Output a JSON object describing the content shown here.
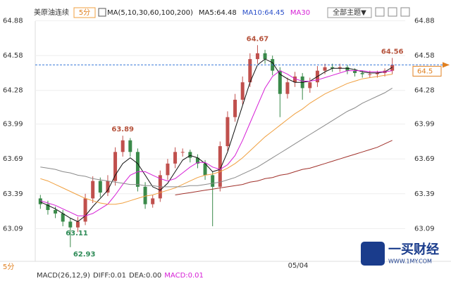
{
  "chart_data": {
    "type": "candlestick",
    "title": "美原油连续",
    "period": "5分",
    "legend": [
      {
        "text": "MA(5,10,30,60,100,200)",
        "color": "#222222"
      },
      {
        "text": "MA5:64.48",
        "color": "#222222"
      },
      {
        "text": "MA10:64.45",
        "color": "#2a4fc9"
      },
      {
        "text": "MA30",
        "color": "#d61fd6"
      }
    ],
    "theme_button": "全部主题▼",
    "ylim": [
      62.82,
      64.95
    ],
    "yticks": [
      63.09,
      63.39,
      63.69,
      63.99,
      64.28,
      64.58,
      64.88
    ],
    "x_label": "05/04",
    "bottom_period": "5分",
    "macd": [
      "MACD(26,12,9)",
      "DIFF:0.01",
      "DEA:0.00",
      "MACD:0.01"
    ],
    "current_price": 64.5,
    "up_color": "#c0504d",
    "down_color": "#3a8a4a",
    "open": [
      63.35,
      63.3,
      63.25,
      63.22,
      63.15,
      63.1,
      63.15,
      63.35,
      63.5,
      63.4,
      63.5,
      63.75,
      63.85,
      63.75,
      63.45,
      63.3,
      63.35,
      63.55,
      63.65,
      63.75,
      63.75,
      63.7,
      63.65,
      63.55,
      63.45,
      63.8,
      64.05,
      64.2,
      64.35,
      64.55,
      64.6,
      64.55,
      64.45,
      64.25,
      64.35,
      64.4,
      64.3,
      64.35,
      64.45,
      64.48,
      64.47,
      64.48,
      64.45,
      64.43,
      64.42,
      64.42,
      64.43,
      64.45
    ],
    "high": [
      63.38,
      63.33,
      63.28,
      63.25,
      63.18,
      63.19,
      63.39,
      63.54,
      63.53,
      63.55,
      63.79,
      63.89,
      63.87,
      63.78,
      63.49,
      63.38,
      63.59,
      63.69,
      63.79,
      63.78,
      63.77,
      63.73,
      63.68,
      63.58,
      63.84,
      64.1,
      64.25,
      64.4,
      64.6,
      64.67,
      64.63,
      64.58,
      64.48,
      64.39,
      64.44,
      64.43,
      64.39,
      64.49,
      64.51,
      64.51,
      64.51,
      64.5,
      64.47,
      64.45,
      64.45,
      64.45,
      64.47,
      64.56
    ],
    "low": [
      63.26,
      63.21,
      63.18,
      63.11,
      62.93,
      63.06,
      63.12,
      63.31,
      63.36,
      63.37,
      63.46,
      63.71,
      63.71,
      63.41,
      63.26,
      63.27,
      63.32,
      63.51,
      63.61,
      63.71,
      63.66,
      63.61,
      63.51,
      63.11,
      63.41,
      63.76,
      64.01,
      64.16,
      64.31,
      64.51,
      64.51,
      64.41,
      64.05,
      64.21,
      64.31,
      64.2,
      64.26,
      64.31,
      64.42,
      64.44,
      64.44,
      64.42,
      64.4,
      64.39,
      64.39,
      64.39,
      64.4,
      64.42
    ],
    "close": [
      63.3,
      63.25,
      63.22,
      63.15,
      63.1,
      63.15,
      63.35,
      63.5,
      63.4,
      63.5,
      63.75,
      63.85,
      63.75,
      63.45,
      63.3,
      63.35,
      63.55,
      63.65,
      63.75,
      63.75,
      63.7,
      63.65,
      63.55,
      63.45,
      63.8,
      64.05,
      64.2,
      64.35,
      64.55,
      64.6,
      64.55,
      64.45,
      64.25,
      64.35,
      64.4,
      64.3,
      64.35,
      64.45,
      64.48,
      64.47,
      64.48,
      64.45,
      64.43,
      64.42,
      64.42,
      64.43,
      64.45,
      64.5
    ],
    "extreme_labels": [
      62.93,
      63.89,
      63.11,
      64.67,
      64.56
    ],
    "ma_lines": [
      {
        "color": "#111111",
        "values": [
          63.32,
          63.29,
          63.26,
          63.22,
          63.18,
          63.15,
          63.2,
          63.28,
          63.35,
          63.42,
          63.55,
          63.65,
          63.7,
          63.65,
          63.55,
          63.45,
          63.42,
          63.48,
          63.58,
          63.68,
          63.72,
          63.7,
          63.65,
          63.58,
          63.6,
          63.75,
          63.95,
          64.15,
          64.35,
          64.5,
          64.55,
          64.52,
          64.42,
          64.38,
          64.35,
          64.35,
          64.36,
          64.4,
          64.44,
          64.47,
          64.47,
          64.47,
          64.46,
          64.44,
          64.43,
          64.43,
          64.44,
          64.48
        ]
      },
      {
        "color": "#d61fd6",
        "values": [
          63.33,
          63.31,
          63.29,
          63.26,
          63.23,
          63.2,
          63.2,
          63.22,
          63.26,
          63.3,
          63.38,
          63.47,
          63.55,
          63.58,
          63.58,
          63.55,
          63.52,
          63.5,
          63.52,
          63.57,
          63.62,
          63.66,
          63.66,
          63.62,
          63.6,
          63.64,
          63.72,
          63.85,
          64.0,
          64.15,
          64.3,
          64.4,
          64.45,
          64.42,
          64.38,
          64.36,
          64.36,
          64.37,
          64.39,
          64.41,
          64.43,
          64.45,
          64.45,
          64.45,
          64.44,
          64.44,
          64.44,
          64.45
        ]
      },
      {
        "color": "#f0a040",
        "values": [
          63.52,
          63.5,
          63.47,
          63.44,
          63.41,
          63.38,
          63.35,
          63.33,
          63.31,
          63.3,
          63.3,
          63.31,
          63.33,
          63.35,
          63.37,
          63.38,
          63.4,
          63.42,
          63.44,
          63.47,
          63.5,
          63.53,
          63.55,
          63.56,
          63.58,
          63.61,
          63.65,
          63.7,
          63.76,
          63.82,
          63.88,
          63.93,
          63.98,
          64.03,
          64.08,
          64.12,
          64.17,
          64.21,
          64.25,
          64.28,
          64.31,
          64.34,
          64.36,
          64.38,
          64.39,
          64.4,
          64.41,
          64.42
        ]
      },
      {
        "color": "#8a8a8a",
        "values": [
          63.62,
          63.61,
          63.6,
          63.58,
          63.57,
          63.55,
          63.54,
          63.52,
          63.51,
          63.5,
          63.49,
          63.48,
          63.47,
          63.47,
          63.46,
          63.46,
          63.45,
          63.45,
          63.45,
          63.45,
          63.46,
          63.46,
          63.47,
          63.48,
          63.49,
          63.51,
          63.53,
          63.56,
          63.59,
          63.62,
          63.66,
          63.7,
          63.74,
          63.78,
          63.82,
          63.86,
          63.9,
          63.94,
          63.98,
          64.02,
          64.06,
          64.1,
          64.13,
          64.17,
          64.2,
          64.23,
          64.26,
          64.3
        ]
      },
      {
        "color": "#a0302a",
        "values": [
          null,
          null,
          null,
          null,
          null,
          null,
          null,
          null,
          null,
          null,
          null,
          null,
          null,
          null,
          null,
          null,
          null,
          null,
          63.38,
          63.39,
          63.4,
          63.41,
          63.42,
          63.43,
          63.44,
          63.45,
          63.46,
          63.47,
          63.49,
          63.5,
          63.52,
          63.53,
          63.55,
          63.56,
          63.58,
          63.6,
          63.61,
          63.63,
          63.65,
          63.67,
          63.69,
          63.71,
          63.73,
          63.75,
          63.77,
          63.79,
          63.82,
          63.85
        ]
      }
    ],
    "watermark": {
      "name": "一买财经",
      "url": "WWW.1MY.COM"
    }
  }
}
